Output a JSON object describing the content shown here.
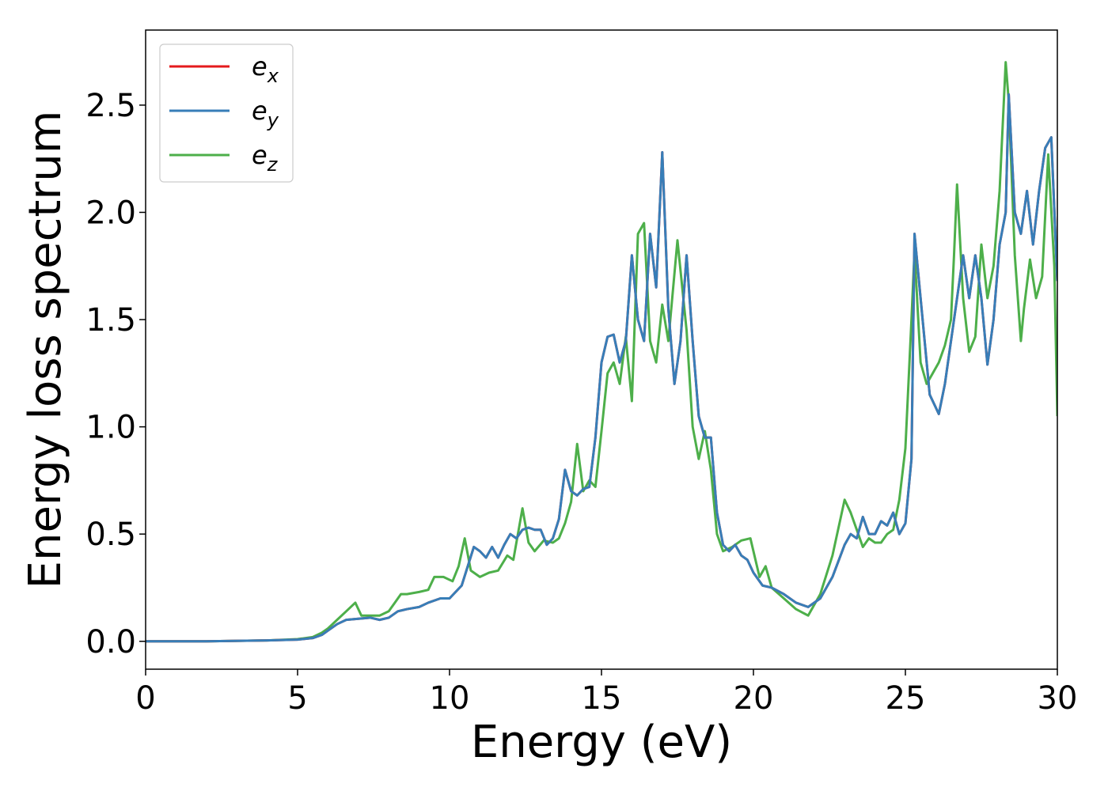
{
  "chart_data": {
    "type": "line",
    "title": "",
    "xlabel": "Energy (eV)",
    "ylabel": "Energy loss spectrum",
    "xlim": [
      0,
      30
    ],
    "ylim": [
      -0.13,
      2.85
    ],
    "xticks": [
      0,
      5,
      10,
      15,
      20,
      25,
      30
    ],
    "yticks": [
      0.0,
      0.5,
      1.0,
      1.5,
      2.0,
      2.5
    ],
    "grid": false,
    "legend_position": "upper-left",
    "series": [
      {
        "name": "x",
        "color": "#e41a1c",
        "x": [
          0,
          2,
          4,
          5,
          5.5,
          5.8,
          6.0,
          6.3,
          6.6,
          7.0,
          7.4,
          7.7,
          8.0,
          8.3,
          8.6,
          9.0,
          9.3,
          9.7,
          10.0,
          10.4,
          10.8,
          11.0,
          11.2,
          11.4,
          11.6,
          11.8,
          12.0,
          12.2,
          12.4,
          12.6,
          12.8,
          13.0,
          13.2,
          13.4,
          13.6,
          13.8,
          14.0,
          14.2,
          14.4,
          14.6,
          14.8,
          15.0,
          15.2,
          15.4,
          15.6,
          15.8,
          16.0,
          16.2,
          16.4,
          16.6,
          16.8,
          17.0,
          17.2,
          17.4,
          17.6,
          17.8,
          18.0,
          18.2,
          18.4,
          18.6,
          18.8,
          19.0,
          19.2,
          19.4,
          19.6,
          19.8,
          20.0,
          20.3,
          20.6,
          21.0,
          21.4,
          21.8,
          22.2,
          22.6,
          23.0,
          23.2,
          23.4,
          23.6,
          23.8,
          24.0,
          24.2,
          24.4,
          24.6,
          24.8,
          25.0,
          25.2,
          25.3,
          25.5,
          25.8,
          26.1,
          26.3,
          26.5,
          26.7,
          26.9,
          27.1,
          27.3,
          27.5,
          27.7,
          27.9,
          28.1,
          28.3,
          28.4,
          28.6,
          28.8,
          29.0,
          29.2,
          29.4,
          29.6,
          29.8,
          30.0
        ],
        "y": [
          0,
          0,
          0.004,
          0.008,
          0.015,
          0.03,
          0.05,
          0.08,
          0.1,
          0.105,
          0.11,
          0.1,
          0.11,
          0.14,
          0.15,
          0.16,
          0.18,
          0.2,
          0.2,
          0.26,
          0.44,
          0.42,
          0.39,
          0.44,
          0.39,
          0.45,
          0.5,
          0.48,
          0.52,
          0.53,
          0.52,
          0.52,
          0.45,
          0.48,
          0.57,
          0.8,
          0.7,
          0.68,
          0.71,
          0.72,
          0.95,
          1.3,
          1.42,
          1.43,
          1.3,
          1.4,
          1.8,
          1.5,
          1.4,
          1.9,
          1.65,
          2.28,
          1.55,
          1.2,
          1.4,
          1.8,
          1.4,
          1.05,
          0.95,
          0.95,
          0.6,
          0.45,
          0.42,
          0.45,
          0.4,
          0.38,
          0.32,
          0.26,
          0.25,
          0.22,
          0.18,
          0.16,
          0.2,
          0.3,
          0.45,
          0.5,
          0.48,
          0.58,
          0.5,
          0.5,
          0.56,
          0.54,
          0.6,
          0.5,
          0.55,
          0.85,
          1.9,
          1.6,
          1.15,
          1.06,
          1.2,
          1.4,
          1.6,
          1.8,
          1.6,
          1.8,
          1.6,
          1.29,
          1.5,
          1.85,
          2.0,
          2.55,
          2.0,
          1.9,
          2.1,
          1.85,
          2.1,
          2.3,
          2.35,
          1.68
        ]
      },
      {
        "name": "y",
        "color": "#377eb8",
        "x": [
          0,
          2,
          4,
          5,
          5.5,
          5.8,
          6.0,
          6.3,
          6.6,
          7.0,
          7.4,
          7.7,
          8.0,
          8.3,
          8.6,
          9.0,
          9.3,
          9.7,
          10.0,
          10.4,
          10.8,
          11.0,
          11.2,
          11.4,
          11.6,
          11.8,
          12.0,
          12.2,
          12.4,
          12.6,
          12.8,
          13.0,
          13.2,
          13.4,
          13.6,
          13.8,
          14.0,
          14.2,
          14.4,
          14.6,
          14.8,
          15.0,
          15.2,
          15.4,
          15.6,
          15.8,
          16.0,
          16.2,
          16.4,
          16.6,
          16.8,
          17.0,
          17.2,
          17.4,
          17.6,
          17.8,
          18.0,
          18.2,
          18.4,
          18.6,
          18.8,
          19.0,
          19.2,
          19.4,
          19.6,
          19.8,
          20.0,
          20.3,
          20.6,
          21.0,
          21.4,
          21.8,
          22.2,
          22.6,
          23.0,
          23.2,
          23.4,
          23.6,
          23.8,
          24.0,
          24.2,
          24.4,
          24.6,
          24.8,
          25.0,
          25.2,
          25.3,
          25.5,
          25.8,
          26.1,
          26.3,
          26.5,
          26.7,
          26.9,
          27.1,
          27.3,
          27.5,
          27.7,
          27.9,
          28.1,
          28.3,
          28.4,
          28.6,
          28.8,
          29.0,
          29.2,
          29.4,
          29.6,
          29.8,
          30.0
        ],
        "y": [
          0,
          0,
          0.004,
          0.008,
          0.015,
          0.03,
          0.05,
          0.08,
          0.1,
          0.105,
          0.11,
          0.1,
          0.11,
          0.14,
          0.15,
          0.16,
          0.18,
          0.2,
          0.2,
          0.26,
          0.44,
          0.42,
          0.39,
          0.44,
          0.39,
          0.45,
          0.5,
          0.48,
          0.52,
          0.53,
          0.52,
          0.52,
          0.45,
          0.48,
          0.57,
          0.8,
          0.7,
          0.68,
          0.71,
          0.72,
          0.95,
          1.3,
          1.42,
          1.43,
          1.3,
          1.4,
          1.8,
          1.5,
          1.4,
          1.9,
          1.65,
          2.28,
          1.55,
          1.2,
          1.4,
          1.8,
          1.4,
          1.05,
          0.95,
          0.95,
          0.6,
          0.45,
          0.42,
          0.45,
          0.4,
          0.38,
          0.32,
          0.26,
          0.25,
          0.22,
          0.18,
          0.16,
          0.2,
          0.3,
          0.45,
          0.5,
          0.48,
          0.58,
          0.5,
          0.5,
          0.56,
          0.54,
          0.6,
          0.5,
          0.55,
          0.85,
          1.9,
          1.6,
          1.15,
          1.06,
          1.2,
          1.4,
          1.6,
          1.8,
          1.6,
          1.8,
          1.6,
          1.29,
          1.5,
          1.85,
          2.0,
          2.55,
          2.0,
          1.9,
          2.1,
          1.85,
          2.1,
          2.3,
          2.35,
          1.68
        ]
      },
      {
        "name": "z",
        "color": "#4daf4a",
        "x": [
          0,
          2,
          4,
          5,
          5.5,
          5.8,
          6.0,
          6.3,
          6.6,
          6.9,
          7.1,
          7.4,
          7.7,
          8.0,
          8.2,
          8.4,
          8.6,
          9.0,
          9.3,
          9.5,
          9.8,
          10.1,
          10.3,
          10.5,
          10.7,
          11.0,
          11.3,
          11.6,
          11.9,
          12.1,
          12.4,
          12.6,
          12.8,
          13.1,
          13.4,
          13.6,
          13.8,
          14.0,
          14.2,
          14.4,
          14.6,
          14.8,
          15.0,
          15.2,
          15.4,
          15.6,
          15.8,
          16.0,
          16.2,
          16.4,
          16.6,
          16.8,
          17.0,
          17.2,
          17.5,
          17.8,
          18.0,
          18.2,
          18.4,
          18.6,
          18.8,
          19.0,
          19.3,
          19.6,
          19.9,
          20.2,
          20.4,
          20.6,
          21.0,
          21.4,
          21.8,
          22.2,
          22.6,
          23.0,
          23.2,
          23.4,
          23.6,
          23.8,
          24.0,
          24.2,
          24.4,
          24.6,
          24.8,
          25.0,
          25.2,
          25.3,
          25.5,
          25.7,
          25.9,
          26.1,
          26.3,
          26.5,
          26.6,
          26.7,
          26.9,
          27.1,
          27.3,
          27.5,
          27.7,
          27.9,
          28.1,
          28.3,
          28.4,
          28.6,
          28.8,
          28.9,
          29.1,
          29.3,
          29.5,
          29.7,
          29.9,
          30.0
        ],
        "y": [
          0,
          0,
          0.004,
          0.01,
          0.02,
          0.04,
          0.06,
          0.1,
          0.14,
          0.18,
          0.12,
          0.12,
          0.12,
          0.14,
          0.18,
          0.22,
          0.22,
          0.23,
          0.24,
          0.3,
          0.3,
          0.28,
          0.35,
          0.48,
          0.33,
          0.3,
          0.32,
          0.33,
          0.4,
          0.38,
          0.62,
          0.46,
          0.42,
          0.47,
          0.46,
          0.48,
          0.55,
          0.65,
          0.92,
          0.7,
          0.75,
          0.72,
          0.98,
          1.25,
          1.3,
          1.2,
          1.42,
          1.12,
          1.9,
          1.95,
          1.4,
          1.3,
          1.57,
          1.4,
          1.87,
          1.45,
          1.0,
          0.85,
          0.98,
          0.8,
          0.5,
          0.42,
          0.44,
          0.47,
          0.48,
          0.3,
          0.35,
          0.25,
          0.2,
          0.15,
          0.12,
          0.22,
          0.4,
          0.66,
          0.6,
          0.52,
          0.44,
          0.48,
          0.46,
          0.46,
          0.5,
          0.52,
          0.66,
          0.9,
          1.5,
          1.82,
          1.3,
          1.2,
          1.25,
          1.3,
          1.38,
          1.5,
          1.8,
          2.13,
          1.6,
          1.35,
          1.42,
          1.85,
          1.6,
          1.75,
          2.1,
          2.7,
          2.52,
          1.8,
          1.4,
          1.55,
          1.78,
          1.6,
          1.7,
          2.27,
          1.75,
          1.05
        ]
      }
    ],
    "legend": [
      {
        "base": "e",
        "sub": "x"
      },
      {
        "base": "e",
        "sub": "y"
      },
      {
        "base": "e",
        "sub": "z"
      }
    ],
    "axes_color": "#000000",
    "legend_border_color": "#cccccc"
  }
}
